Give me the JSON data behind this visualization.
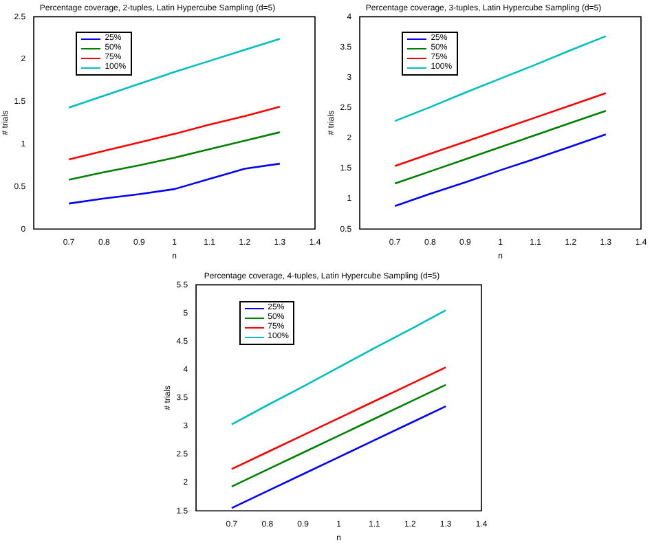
{
  "chart_data": [
    {
      "type": "line",
      "title": "Percentage coverage, 2-tuples, Latin Hypercube Sampling (d=5)",
      "xlabel": "n",
      "ylabel": "# trials",
      "x": [
        0.7,
        0.8,
        0.9,
        1.0,
        1.1,
        1.2,
        1.3
      ],
      "xlim": [
        0.6,
        1.4
      ],
      "xticks": [
        0.7,
        0.8,
        0.9,
        1,
        1.1,
        1.2,
        1.3,
        1.4
      ],
      "ylim": [
        0,
        2.5
      ],
      "yticks": [
        0,
        0.5,
        1,
        1.5,
        2,
        2.5
      ],
      "grid": false,
      "legend": "top left",
      "marker": "none",
      "line_style": "solid",
      "series": [
        {
          "name": "25%",
          "color": "#0000ff",
          "values": [
            0.3,
            0.36,
            0.41,
            0.47,
            0.59,
            0.71,
            0.77
          ]
        },
        {
          "name": "50%",
          "color": "#008000",
          "values": [
            0.58,
            0.67,
            0.75,
            0.84,
            0.94,
            1.04,
            1.14
          ]
        },
        {
          "name": "75%",
          "color": "#ff0000",
          "values": [
            0.82,
            0.92,
            1.02,
            1.12,
            1.23,
            1.33,
            1.44
          ]
        },
        {
          "name": "100%",
          "color": "#00bfbf",
          "values": [
            1.43,
            1.57,
            1.71,
            1.85,
            1.98,
            2.11,
            2.24
          ]
        }
      ]
    },
    {
      "type": "line",
      "title": "Percentage coverage, 3-tuples, Latin Hypercube Sampling (d=5)",
      "xlabel": "n",
      "ylabel": "# trials",
      "x": [
        0.7,
        0.8,
        0.9,
        1.0,
        1.1,
        1.2,
        1.3
      ],
      "xlim": [
        0.6,
        1.4
      ],
      "xticks": [
        0.7,
        0.8,
        0.9,
        1,
        1.1,
        1.2,
        1.3,
        1.4
      ],
      "ylim": [
        0.5,
        4
      ],
      "yticks": [
        0.5,
        1,
        1.5,
        2,
        2.5,
        3,
        3.5,
        4
      ],
      "grid": false,
      "legend": "top left",
      "marker": "none",
      "line_style": "solid",
      "series": [
        {
          "name": "25%",
          "color": "#0000ff",
          "values": [
            0.88,
            1.08,
            1.27,
            1.47,
            1.66,
            1.86,
            2.06
          ]
        },
        {
          "name": "50%",
          "color": "#008000",
          "values": [
            1.25,
            1.45,
            1.65,
            1.85,
            2.05,
            2.25,
            2.45
          ]
        },
        {
          "name": "75%",
          "color": "#ff0000",
          "values": [
            1.54,
            1.74,
            1.94,
            2.14,
            2.34,
            2.54,
            2.74
          ]
        },
        {
          "name": "100%",
          "color": "#00bfbf",
          "values": [
            2.28,
            2.51,
            2.75,
            2.98,
            3.21,
            3.45,
            3.68
          ]
        }
      ]
    },
    {
      "type": "line",
      "title": "Percentage coverage, 4-tuples, Latin Hypercube Sampling (d=5)",
      "xlabel": "n",
      "ylabel": "# trials",
      "x": [
        0.7,
        0.8,
        0.9,
        1.0,
        1.1,
        1.2,
        1.3
      ],
      "xlim": [
        0.6,
        1.4
      ],
      "xticks": [
        0.7,
        0.8,
        0.9,
        1,
        1.1,
        1.2,
        1.3,
        1.4
      ],
      "ylim": [
        1.5,
        5.5
      ],
      "yticks": [
        1.5,
        2,
        2.5,
        3,
        3.5,
        4,
        4.5,
        5,
        5.5
      ],
      "grid": false,
      "legend": "top left",
      "marker": "none",
      "line_style": "solid",
      "series": [
        {
          "name": "25%",
          "color": "#0000ff",
          "values": [
            1.55,
            1.85,
            2.15,
            2.45,
            2.75,
            3.05,
            3.35
          ]
        },
        {
          "name": "50%",
          "color": "#008000",
          "values": [
            1.93,
            2.23,
            2.53,
            2.83,
            3.13,
            3.43,
            3.73
          ]
        },
        {
          "name": "75%",
          "color": "#ff0000",
          "values": [
            2.24,
            2.54,
            2.84,
            3.14,
            3.44,
            3.74,
            4.04
          ]
        },
        {
          "name": "100%",
          "color": "#00bfbf",
          "values": [
            3.03,
            3.37,
            3.7,
            4.04,
            4.38,
            4.71,
            5.05
          ]
        }
      ]
    }
  ]
}
